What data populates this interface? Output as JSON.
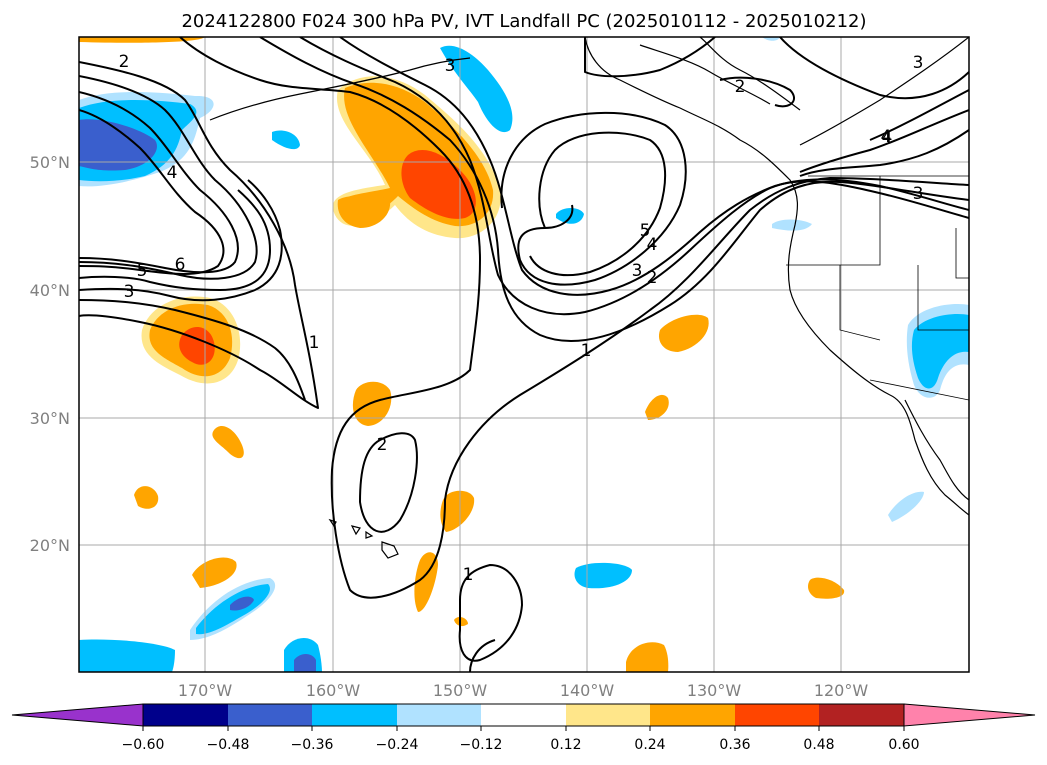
{
  "title": "2024122800 F024 300 hPa PV, IVT Landfall PC (2025010112 - 2025010212)",
  "lat_labels": [
    "50°N",
    "40°N",
    "30°N",
    "20°N"
  ],
  "lon_labels": [
    "170°W",
    "160°W",
    "150°W",
    "140°W",
    "130°W",
    "120°W"
  ],
  "colorbar": {
    "ticks": [
      "−0.60",
      "−0.48",
      "−0.36",
      "−0.24",
      "−0.12",
      "0.12",
      "0.24",
      "0.36",
      "0.48",
      "0.60"
    ],
    "colors": [
      "#9932cc",
      "#00008b",
      "#3a5fcd",
      "#00bfff",
      "#b0e2ff",
      "#ffffff",
      "#ffe68a",
      "#ffa500",
      "#ff4500",
      "#b22222",
      "#ff82ab"
    ]
  },
  "contour_labels": [
    "2",
    "4",
    "3",
    "2",
    "3",
    "4",
    "6",
    "5",
    "3",
    "1",
    "5",
    "4",
    "3",
    "2",
    "1",
    "2",
    "1",
    "4",
    "3"
  ],
  "colors": {
    "positive_low": "#ffe68a",
    "positive_mid": "#ffa500",
    "positive_high": "#ff4500",
    "negative_low": "#b0e2ff",
    "negative_mid": "#00bfff",
    "negative_high": "#3a5fcd",
    "negative_max": "#4a55c8"
  }
}
